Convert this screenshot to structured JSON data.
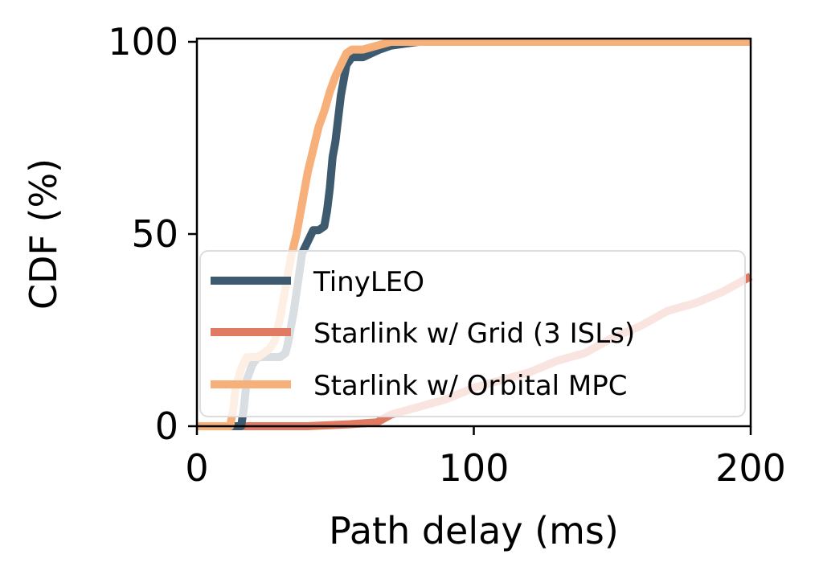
{
  "chart_data": {
    "type": "line",
    "title": "",
    "xlabel": "Path delay (ms)",
    "ylabel": "CDF (%)",
    "xlim": [
      0,
      200
    ],
    "ylim": [
      0,
      100
    ],
    "xticks": [
      0,
      100,
      200
    ],
    "yticks": [
      0,
      50,
      100
    ],
    "grid": false,
    "legend_position": "center-right",
    "series": [
      {
        "name": "TinyLEO",
        "color": "#3d5a6e",
        "x": [
          0,
          16,
          17,
          18,
          20,
          22,
          24,
          26,
          28,
          30,
          32,
          33,
          35,
          37,
          38,
          40,
          42,
          44,
          46,
          47,
          48,
          49,
          50,
          52,
          54,
          56,
          60,
          63,
          66,
          70,
          80,
          200
        ],
        "y": [
          0,
          0,
          5,
          12,
          16,
          18,
          18,
          18,
          18,
          18,
          19,
          22,
          30,
          40,
          45,
          48,
          51,
          51,
          52,
          56,
          62,
          70,
          74,
          86,
          94,
          96,
          96,
          97,
          98,
          99,
          100,
          100
        ]
      },
      {
        "name": "Starlink w/ Grid (3 ISLs)",
        "color": "#e07a62",
        "x": [
          0,
          40,
          55,
          65,
          70,
          75,
          80,
          90,
          100,
          110,
          120,
          130,
          140,
          150,
          160,
          170,
          180,
          190,
          200
        ],
        "y": [
          0,
          0,
          0.5,
          1,
          3,
          4,
          5,
          7,
          10,
          12,
          14,
          17,
          19,
          23,
          26,
          30,
          32,
          35,
          39
        ]
      },
      {
        "name": "Starlink w/ Orbital MPC",
        "color": "#f7b079",
        "x": [
          0,
          12,
          13,
          14,
          16,
          18,
          20,
          22,
          24,
          26,
          28,
          30,
          32,
          34,
          36,
          38,
          40,
          42,
          44,
          46,
          48,
          50,
          52,
          54,
          56,
          60,
          65,
          70,
          200
        ],
        "y": [
          0,
          0,
          4,
          10,
          15,
          18,
          18,
          18,
          19,
          20,
          22,
          28,
          36,
          44,
          50,
          58,
          66,
          72,
          78,
          82,
          87,
          91,
          94,
          97,
          98,
          98,
          99,
          100,
          100
        ]
      }
    ]
  }
}
